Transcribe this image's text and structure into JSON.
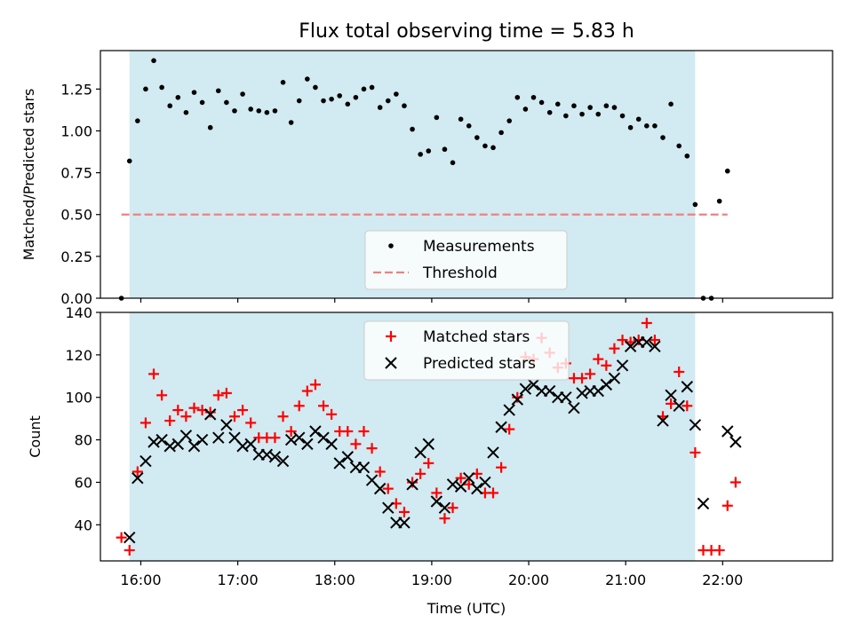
{
  "figure": {
    "title": "Flux total observing time = 5.83 h",
    "xlabel": "Time (UTC)"
  },
  "colors": {
    "band": "#add8e6",
    "measurement": "#000000",
    "threshold": "#f08080",
    "matched": "#ff0000",
    "predicted": "#000000"
  },
  "chart_data": [
    {
      "type": "scatter",
      "panel": "top",
      "ylabel": "Matched/Predicted stars",
      "ylim": [
        0,
        1.48
      ],
      "yticks": [
        0.0,
        0.25,
        0.5,
        0.75,
        1.0,
        1.25
      ],
      "ytick_labels": [
        "0.00",
        "0.25",
        "0.50",
        "0.75",
        "1.00",
        "1.25"
      ],
      "xlim": [
        "15:35",
        "23:08"
      ],
      "xticks": [
        "16:00",
        "17:00",
        "18:00",
        "19:00",
        "20:00",
        "21:00",
        "22:00"
      ],
      "shaded_span": [
        "15:53",
        "21:43"
      ],
      "legend": {
        "position": "lower center",
        "entries": [
          "Measurements",
          "Threshold"
        ]
      },
      "threshold": {
        "name": "Threshold",
        "value": 0.5,
        "x_range": [
          "15:48",
          "22:03"
        ]
      },
      "series": [
        {
          "name": "Measurements",
          "points": [
            [
              "15:48",
              0.0
            ],
            [
              "15:53",
              0.82
            ],
            [
              "15:58",
              1.06
            ],
            [
              "16:03",
              1.25
            ],
            [
              "16:08",
              1.42
            ],
            [
              "16:13",
              1.26
            ],
            [
              "16:18",
              1.15
            ],
            [
              "16:23",
              1.2
            ],
            [
              "16:28",
              1.11
            ],
            [
              "16:33",
              1.23
            ],
            [
              "16:38",
              1.17
            ],
            [
              "16:43",
              1.02
            ],
            [
              "16:48",
              1.24
            ],
            [
              "16:53",
              1.17
            ],
            [
              "16:58",
              1.12
            ],
            [
              "17:03",
              1.22
            ],
            [
              "17:08",
              1.13
            ],
            [
              "17:13",
              1.12
            ],
            [
              "17:18",
              1.11
            ],
            [
              "17:23",
              1.12
            ],
            [
              "17:28",
              1.29
            ],
            [
              "17:33",
              1.05
            ],
            [
              "17:38",
              1.18
            ],
            [
              "17:43",
              1.31
            ],
            [
              "17:48",
              1.26
            ],
            [
              "17:53",
              1.18
            ],
            [
              "17:58",
              1.19
            ],
            [
              "18:03",
              1.21
            ],
            [
              "18:08",
              1.16
            ],
            [
              "18:13",
              1.2
            ],
            [
              "18:18",
              1.25
            ],
            [
              "18:23",
              1.26
            ],
            [
              "18:28",
              1.14
            ],
            [
              "18:33",
              1.18
            ],
            [
              "18:38",
              1.22
            ],
            [
              "18:43",
              1.15
            ],
            [
              "18:48",
              1.01
            ],
            [
              "18:53",
              0.86
            ],
            [
              "18:58",
              0.88
            ],
            [
              "19:03",
              1.08
            ],
            [
              "19:08",
              0.89
            ],
            [
              "19:13",
              0.81
            ],
            [
              "19:18",
              1.07
            ],
            [
              "19:23",
              1.03
            ],
            [
              "19:28",
              0.96
            ],
            [
              "19:33",
              0.91
            ],
            [
              "19:38",
              0.9
            ],
            [
              "19:43",
              0.99
            ],
            [
              "19:48",
              1.06
            ],
            [
              "19:53",
              1.2
            ],
            [
              "19:58",
              1.13
            ],
            [
              "20:03",
              1.2
            ],
            [
              "20:08",
              1.17
            ],
            [
              "20:13",
              1.11
            ],
            [
              "20:18",
              1.16
            ],
            [
              "20:23",
              1.09
            ],
            [
              "20:28",
              1.15
            ],
            [
              "20:33",
              1.1
            ],
            [
              "20:38",
              1.14
            ],
            [
              "20:43",
              1.1
            ],
            [
              "20:48",
              1.15
            ],
            [
              "20:53",
              1.14
            ],
            [
              "20:58",
              1.09
            ],
            [
              "21:03",
              1.02
            ],
            [
              "21:08",
              1.07
            ],
            [
              "21:13",
              1.03
            ],
            [
              "21:18",
              1.03
            ],
            [
              "21:23",
              0.96
            ],
            [
              "21:28",
              1.16
            ],
            [
              "21:33",
              0.91
            ],
            [
              "21:38",
              0.85
            ],
            [
              "21:43",
              0.56
            ],
            [
              "21:48",
              0.0
            ],
            [
              "21:53",
              0.0
            ],
            [
              "21:58",
              0.58
            ],
            [
              "22:03",
              0.76
            ]
          ]
        }
      ]
    },
    {
      "type": "scatter",
      "panel": "bottom",
      "ylabel": "Count",
      "ylim": [
        23,
        140
      ],
      "yticks": [
        40,
        60,
        80,
        100,
        120,
        140
      ],
      "ytick_labels": [
        "40",
        "60",
        "80",
        "100",
        "120",
        "140"
      ],
      "xlim": [
        "15:35",
        "23:08"
      ],
      "xticks": [
        "16:00",
        "17:00",
        "18:00",
        "19:00",
        "20:00",
        "21:00",
        "22:00"
      ],
      "xtick_labels": [
        "16:00",
        "17:00",
        "18:00",
        "19:00",
        "20:00",
        "21:00",
        "22:00"
      ],
      "shaded_span": [
        "15:53",
        "21:43"
      ],
      "legend": {
        "position": "upper center",
        "entries": [
          "Matched stars",
          "Predicted stars"
        ]
      },
      "series": [
        {
          "name": "Matched stars",
          "marker": "plus",
          "points": [
            [
              "15:48",
              34
            ],
            [
              "15:53",
              28
            ],
            [
              "15:58",
              65
            ],
            [
              "16:03",
              88
            ],
            [
              "16:08",
              111
            ],
            [
              "16:13",
              101
            ],
            [
              "16:18",
              89
            ],
            [
              "16:23",
              94
            ],
            [
              "16:28",
              91
            ],
            [
              "16:33",
              95
            ],
            [
              "16:38",
              94
            ],
            [
              "16:43",
              93
            ],
            [
              "16:48",
              101
            ],
            [
              "16:53",
              102
            ],
            [
              "16:58",
              91
            ],
            [
              "17:03",
              94
            ],
            [
              "17:08",
              88
            ],
            [
              "17:13",
              81
            ],
            [
              "17:18",
              81
            ],
            [
              "17:23",
              81
            ],
            [
              "17:28",
              91
            ],
            [
              "17:33",
              84
            ],
            [
              "17:38",
              96
            ],
            [
              "17:43",
              103
            ],
            [
              "17:48",
              106
            ],
            [
              "17:53",
              96
            ],
            [
              "17:58",
              92
            ],
            [
              "18:03",
              84
            ],
            [
              "18:08",
              84
            ],
            [
              "18:13",
              78
            ],
            [
              "18:18",
              84
            ],
            [
              "18:23",
              76
            ],
            [
              "18:28",
              65
            ],
            [
              "18:33",
              57
            ],
            [
              "18:38",
              50
            ],
            [
              "18:43",
              46
            ],
            [
              "18:48",
              60
            ],
            [
              "18:53",
              64
            ],
            [
              "18:58",
              69
            ],
            [
              "19:03",
              55
            ],
            [
              "19:08",
              43
            ],
            [
              "19:13",
              48
            ],
            [
              "19:18",
              62
            ],
            [
              "19:23",
              59
            ],
            [
              "19:28",
              64
            ],
            [
              "19:33",
              55
            ],
            [
              "19:38",
              55
            ],
            [
              "19:43",
              67
            ],
            [
              "19:48",
              85
            ],
            [
              "19:53",
              100
            ],
            [
              "19:58",
              119
            ],
            [
              "20:03",
              118
            ],
            [
              "20:08",
              128
            ],
            [
              "20:13",
              121
            ],
            [
              "20:18",
              114
            ],
            [
              "20:23",
              116
            ],
            [
              "20:28",
              109
            ],
            [
              "20:33",
              109
            ],
            [
              "20:38",
              111
            ],
            [
              "20:43",
              118
            ],
            [
              "20:48",
              115
            ],
            [
              "20:53",
              123
            ],
            [
              "20:58",
              127
            ],
            [
              "21:03",
              126
            ],
            [
              "21:08",
              127
            ],
            [
              "21:13",
              135
            ],
            [
              "21:18",
              127
            ],
            [
              "21:23",
              91
            ],
            [
              "21:28",
              97
            ],
            [
              "21:33",
              112
            ],
            [
              "21:38",
              96
            ],
            [
              "21:43",
              74
            ],
            [
              "21:48",
              28
            ],
            [
              "21:53",
              28
            ],
            [
              "21:58",
              28
            ],
            [
              "22:03",
              49
            ],
            [
              "22:08",
              60
            ]
          ]
        },
        {
          "name": "Predicted stars",
          "marker": "x",
          "points": [
            [
              "15:53",
              34
            ],
            [
              "15:58",
              62
            ],
            [
              "16:03",
              70
            ],
            [
              "16:08",
              79
            ],
            [
              "16:13",
              80
            ],
            [
              "16:18",
              77
            ],
            [
              "16:23",
              78
            ],
            [
              "16:28",
              82
            ],
            [
              "16:33",
              77
            ],
            [
              "16:38",
              80
            ],
            [
              "16:43",
              92
            ],
            [
              "16:48",
              81
            ],
            [
              "16:53",
              87
            ],
            [
              "16:58",
              81
            ],
            [
              "17:03",
              77
            ],
            [
              "17:08",
              78
            ],
            [
              "17:13",
              73
            ],
            [
              "17:18",
              73
            ],
            [
              "17:23",
              72
            ],
            [
              "17:28",
              70
            ],
            [
              "17:33",
              80
            ],
            [
              "17:38",
              81
            ],
            [
              "17:43",
              78
            ],
            [
              "17:48",
              84
            ],
            [
              "17:53",
              81
            ],
            [
              "17:58",
              78
            ],
            [
              "18:03",
              69
            ],
            [
              "18:08",
              72
            ],
            [
              "18:13",
              67
            ],
            [
              "18:18",
              67
            ],
            [
              "18:23",
              61
            ],
            [
              "18:28",
              57
            ],
            [
              "18:33",
              48
            ],
            [
              "18:38",
              41
            ],
            [
              "18:43",
              41
            ],
            [
              "18:48",
              59
            ],
            [
              "18:53",
              74
            ],
            [
              "18:58",
              78
            ],
            [
              "19:03",
              51
            ],
            [
              "19:08",
              48
            ],
            [
              "19:13",
              59
            ],
            [
              "19:18",
              58
            ],
            [
              "19:23",
              62
            ],
            [
              "19:28",
              57
            ],
            [
              "19:33",
              60
            ],
            [
              "19:38",
              74
            ],
            [
              "19:43",
              86
            ],
            [
              "19:48",
              94
            ],
            [
              "19:53",
              99
            ],
            [
              "19:58",
              104
            ],
            [
              "20:03",
              106
            ],
            [
              "20:08",
              103
            ],
            [
              "20:13",
              103
            ],
            [
              "20:18",
              100
            ],
            [
              "20:23",
              100
            ],
            [
              "20:28",
              95
            ],
            [
              "20:33",
              102
            ],
            [
              "20:38",
              103
            ],
            [
              "20:43",
              103
            ],
            [
              "20:48",
              106
            ],
            [
              "20:53",
              109
            ],
            [
              "20:58",
              115
            ],
            [
              "21:03",
              124
            ],
            [
              "21:08",
              126
            ],
            [
              "21:13",
              126
            ],
            [
              "21:18",
              124
            ],
            [
              "21:23",
              89
            ],
            [
              "21:28",
              101
            ],
            [
              "21:33",
              96
            ],
            [
              "21:38",
              105
            ],
            [
              "21:43",
              87
            ],
            [
              "21:48",
              50
            ],
            [
              "22:03",
              84
            ],
            [
              "22:08",
              79
            ]
          ]
        }
      ]
    }
  ]
}
